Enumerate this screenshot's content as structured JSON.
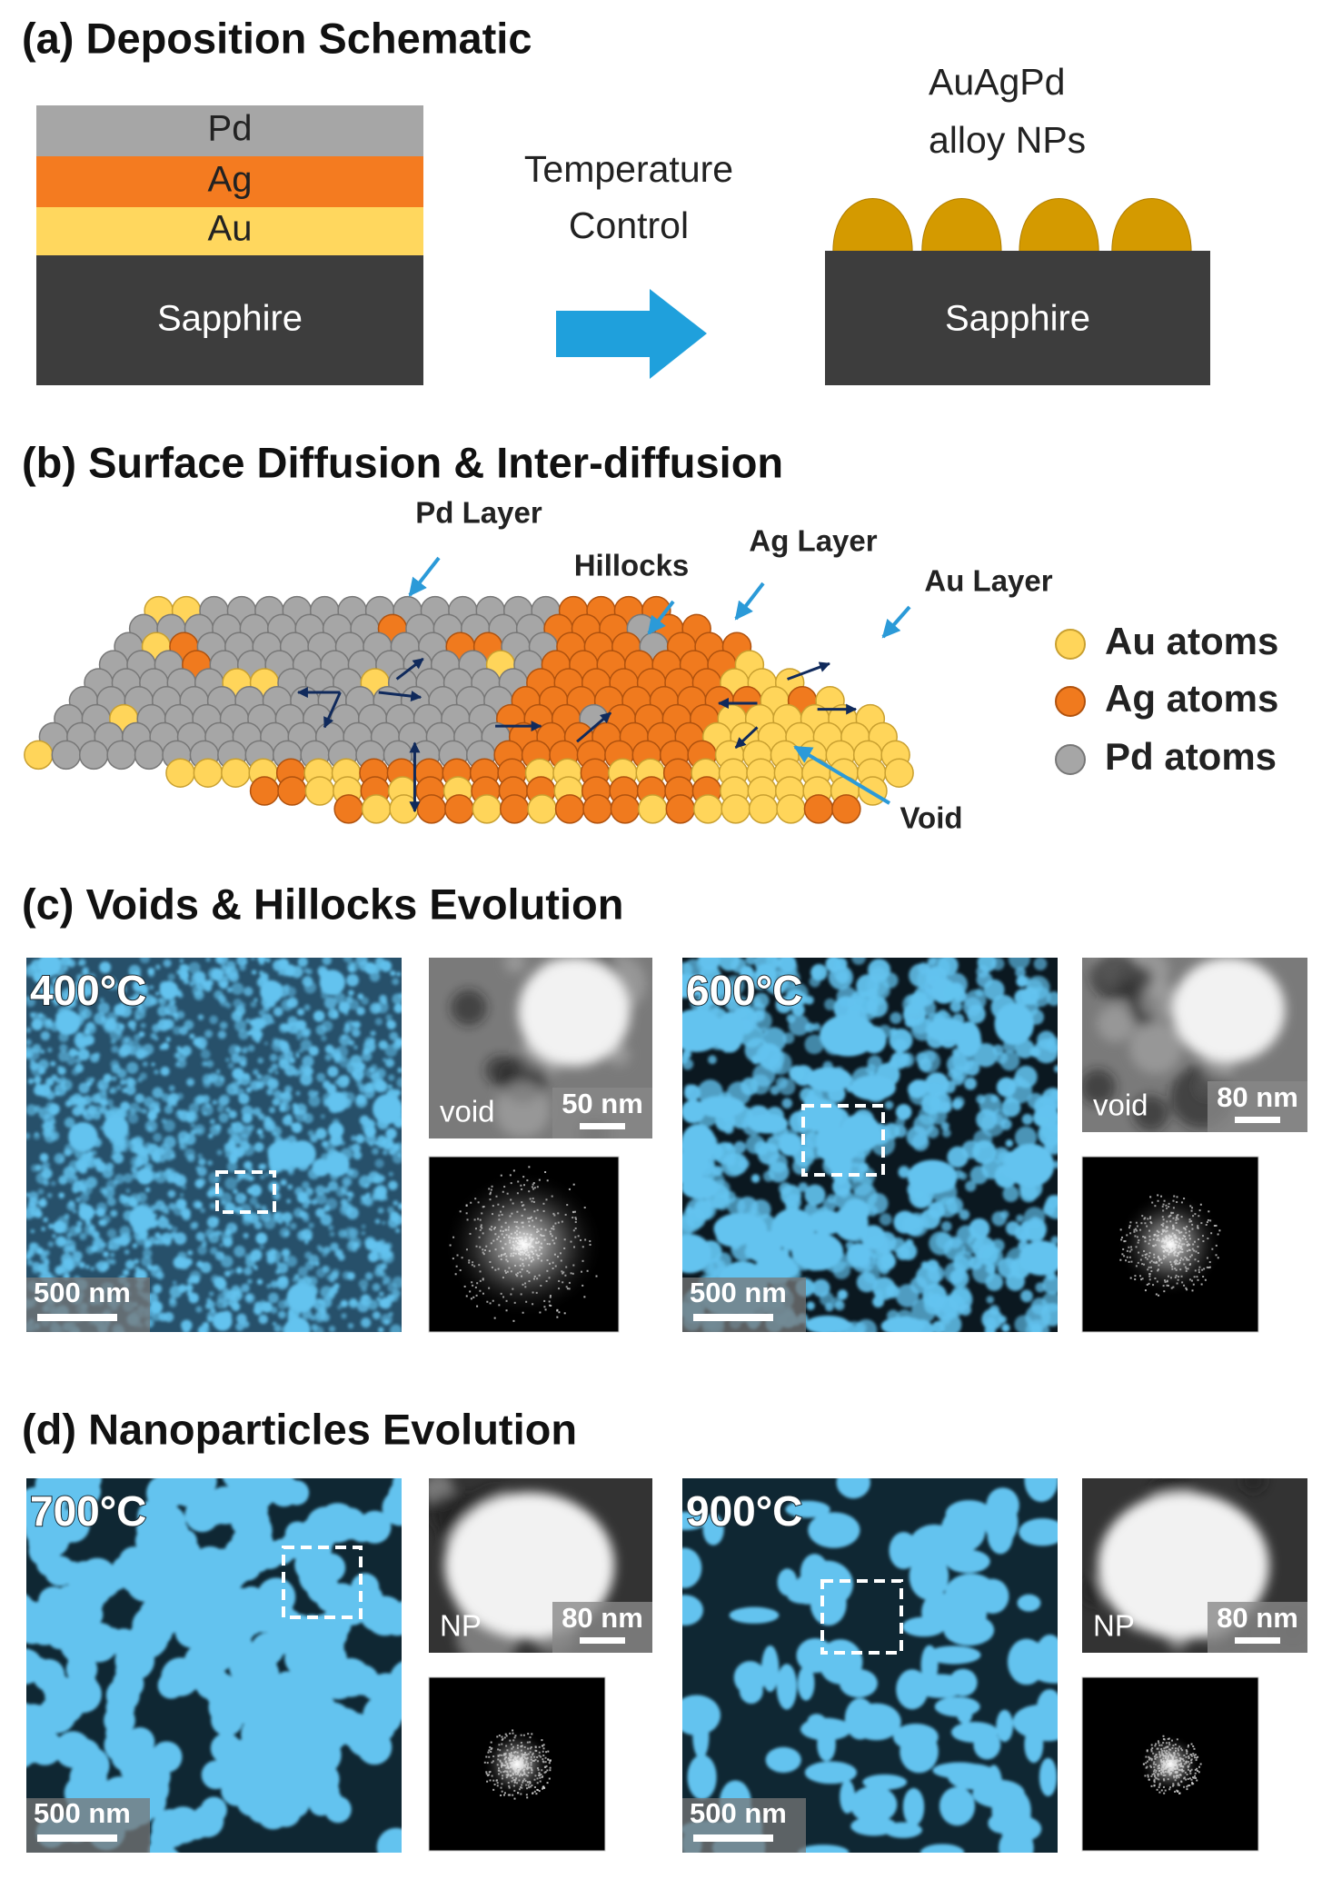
{
  "panel_a": {
    "title": "(a) Deposition Schematic",
    "stack": [
      "Pd",
      "Ag",
      "Au",
      "Sapphire"
    ],
    "arrow_label": [
      "Temperature",
      "Control"
    ],
    "result_label": [
      "AuAgPd",
      "alloy NPs"
    ],
    "result_substrate": "Sapphire"
  },
  "panel_b": {
    "title": "(b) Surface Diffusion & Inter-diffusion",
    "callouts": [
      "Pd Layer",
      "Hillocks",
      "Ag Layer",
      "Au Layer",
      "Void"
    ],
    "legend": [
      "Au atoms",
      "Ag atoms",
      "Pd atoms"
    ]
  },
  "panel_c": {
    "title": "(c) Voids & Hillocks Evolution",
    "samples": [
      {
        "temperature": "400°C",
        "scale": "500 nm",
        "inset_label": "void",
        "inset_scale": "50 nm"
      },
      {
        "temperature": "600°C",
        "scale": "500 nm",
        "inset_label": "void",
        "inset_scale": "80 nm"
      }
    ]
  },
  "panel_d": {
    "title": "(d) Nanoparticles Evolution",
    "samples": [
      {
        "temperature": "700°C",
        "scale": "500 nm",
        "inset_label": "NP",
        "inset_scale": "80 nm"
      },
      {
        "temperature": "900°C",
        "scale": "500 nm",
        "inset_label": "NP",
        "inset_scale": "80 nm"
      }
    ]
  }
}
